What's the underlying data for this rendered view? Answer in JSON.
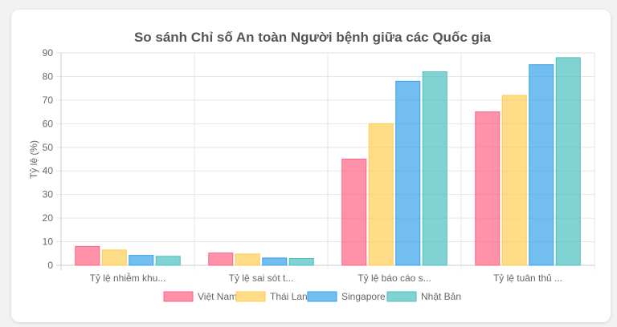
{
  "chart_data": {
    "type": "bar",
    "title": "So sánh Chỉ số An toàn Người bệnh giữa các Quốc gia",
    "xlabel": "",
    "ylabel": "Tỷ lệ (%)",
    "ylim": [
      0,
      90
    ],
    "yticks": [
      0,
      10,
      20,
      30,
      40,
      50,
      60,
      70,
      80,
      90
    ],
    "categories": [
      "Tỷ lệ nhiễm khu...",
      "Tỷ lệ sai sót t...",
      "Tỷ lệ báo cáo s...",
      "Tỷ lệ tuân thủ ..."
    ],
    "series": [
      {
        "name": "Việt Nam",
        "values": [
          8,
          5.2,
          45,
          65
        ],
        "color": "#ff6384"
      },
      {
        "name": "Thái Lan",
        "values": [
          6.5,
          4.8,
          60,
          72
        ],
        "color": "#ffcd56"
      },
      {
        "name": "Singapore",
        "values": [
          4.2,
          3.1,
          78,
          85
        ],
        "color": "#36a2eb"
      },
      {
        "name": "Nhật Bản",
        "values": [
          3.8,
          2.9,
          82,
          88
        ],
        "color": "#4bc0c0"
      }
    ],
    "grid": true,
    "legend": "bottom"
  }
}
